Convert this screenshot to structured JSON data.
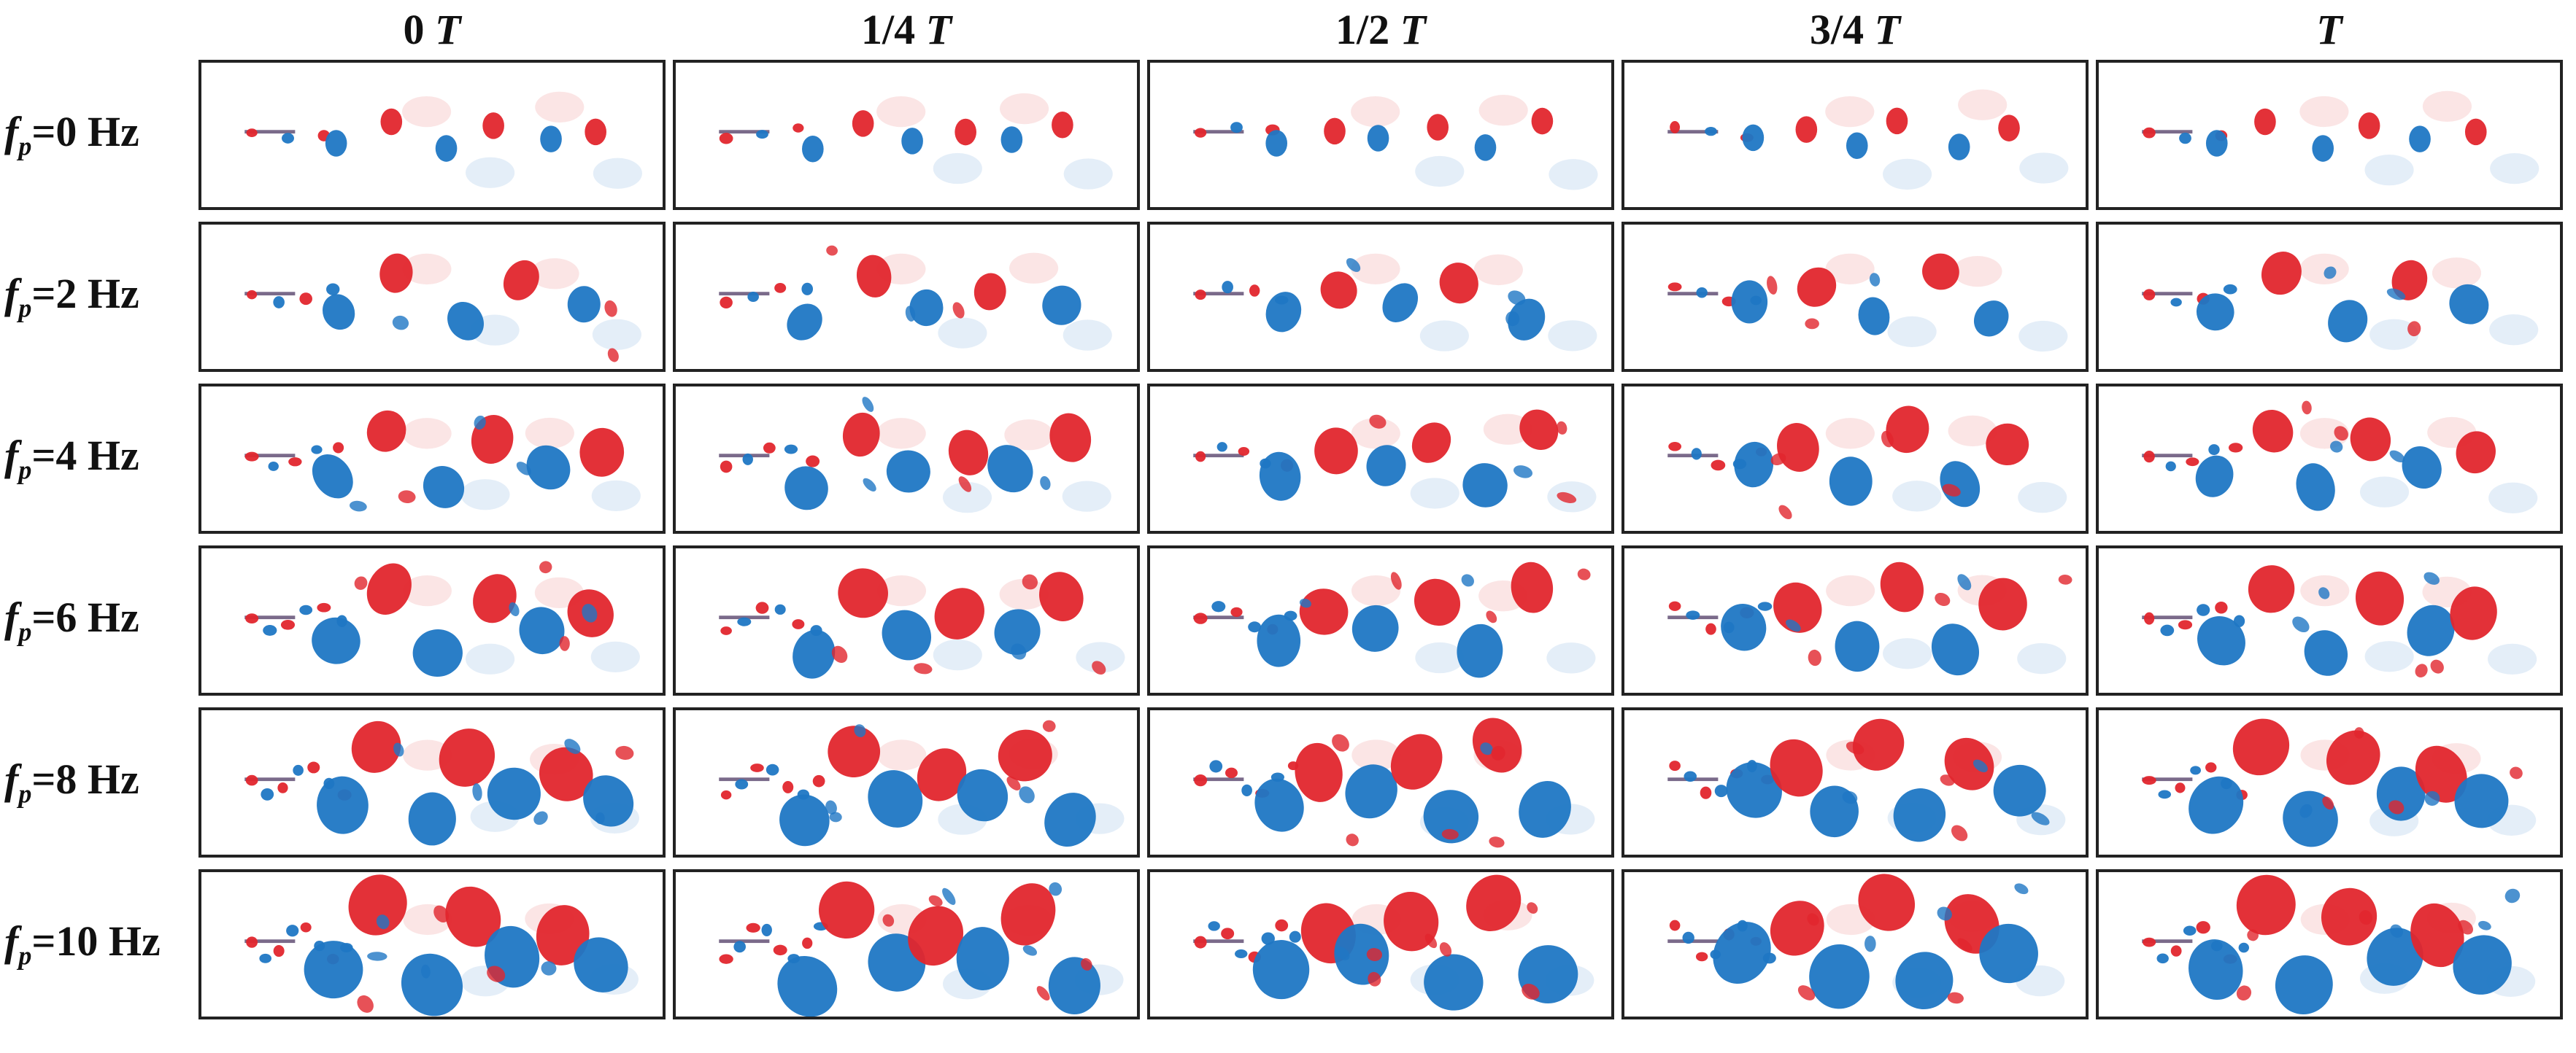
{
  "figure": {
    "columns": [
      {
        "prefix": "0 ",
        "T": "T"
      },
      {
        "prefix": "1/4 ",
        "T": "T"
      },
      {
        "prefix": "1/2 ",
        "T": "T"
      },
      {
        "prefix": "3/4 ",
        "T": "T"
      },
      {
        "prefix": "",
        "T": "T"
      }
    ],
    "rows": [
      {
        "symbol": "f",
        "subscript": "p",
        "value": "=0 Hz",
        "frequency_hz": 0
      },
      {
        "symbol": "f",
        "subscript": "p",
        "value": "=2 Hz",
        "frequency_hz": 2
      },
      {
        "symbol": "f",
        "subscript": "p",
        "value": "=4 Hz",
        "frequency_hz": 4
      },
      {
        "symbol": "f",
        "subscript": "p",
        "value": "=6 Hz",
        "frequency_hz": 6
      },
      {
        "symbol": "f",
        "subscript": "p",
        "value": "=8 Hz",
        "frequency_hz": 8
      },
      {
        "symbol": "f",
        "subscript": "p",
        "value": "=10 Hz",
        "frequency_hz": 10
      }
    ],
    "colors": {
      "positive_vorticity": "#e1262d",
      "negative_vorticity": "#1f77c4",
      "frame": "#222222",
      "background": "#ffffff"
    }
  }
}
